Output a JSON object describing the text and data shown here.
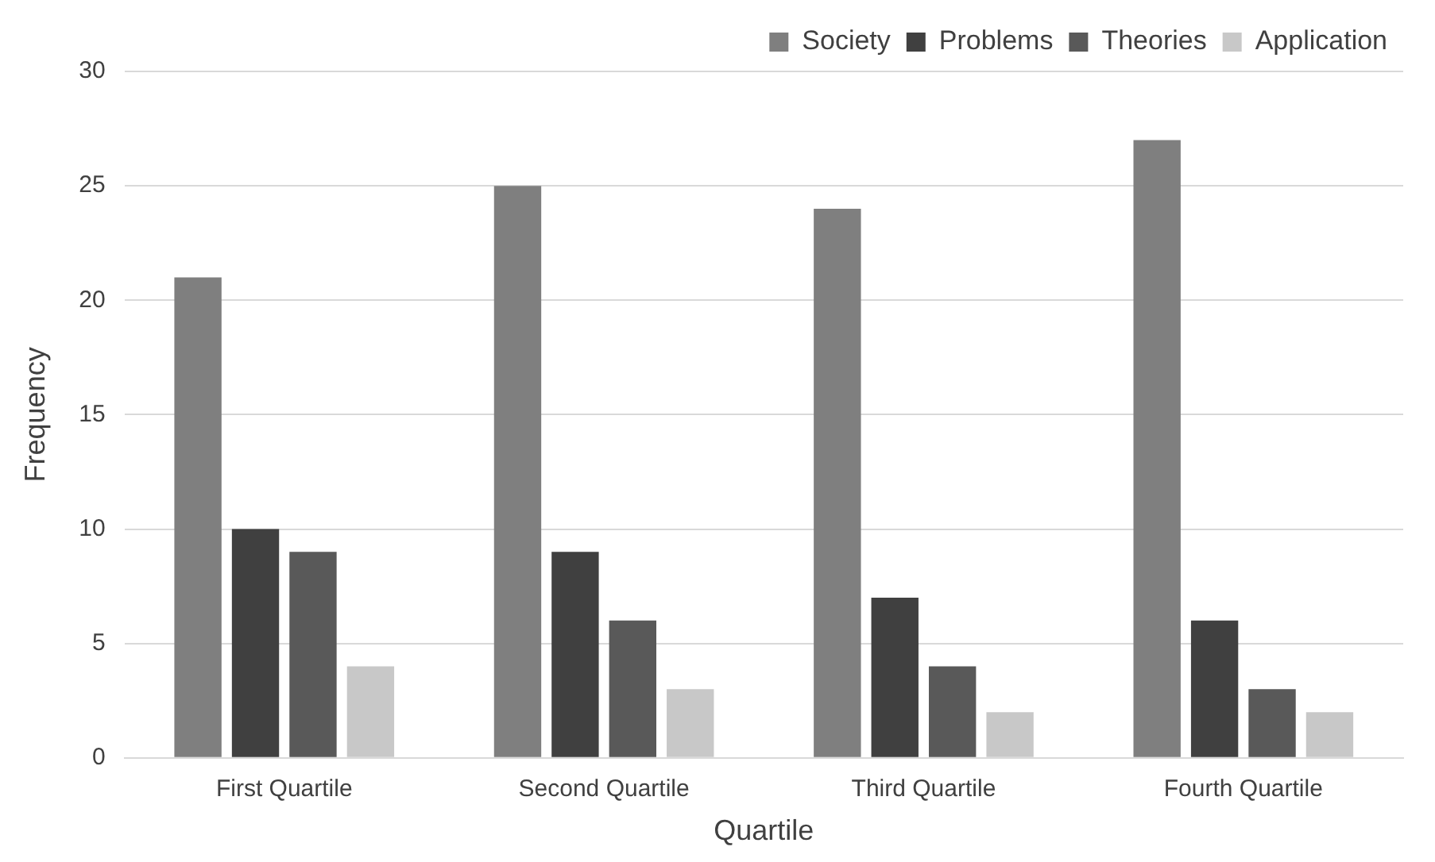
{
  "chart_data": {
    "type": "bar",
    "xlabel": "Quartile",
    "ylabel": "Frequency",
    "categories": [
      "First Quartile",
      "Second Quartile",
      "Third Quartile",
      "Fourth Quartile"
    ],
    "series": [
      {
        "name": "Society",
        "color": "#7f7f7f",
        "values": [
          21,
          25,
          24,
          27
        ]
      },
      {
        "name": "Problems",
        "color": "#404040",
        "values": [
          10,
          9,
          7,
          6
        ]
      },
      {
        "name": "Theories",
        "color": "#595959",
        "values": [
          9,
          6,
          4,
          3
        ]
      },
      {
        "name": "Application",
        "color": "#c8c8c8",
        "values": [
          4,
          3,
          2,
          2
        ]
      }
    ],
    "ylim": [
      0,
      30
    ],
    "yticks": [
      0,
      5,
      10,
      15,
      20,
      25,
      30
    ],
    "grid": "y",
    "legend": "top right"
  }
}
